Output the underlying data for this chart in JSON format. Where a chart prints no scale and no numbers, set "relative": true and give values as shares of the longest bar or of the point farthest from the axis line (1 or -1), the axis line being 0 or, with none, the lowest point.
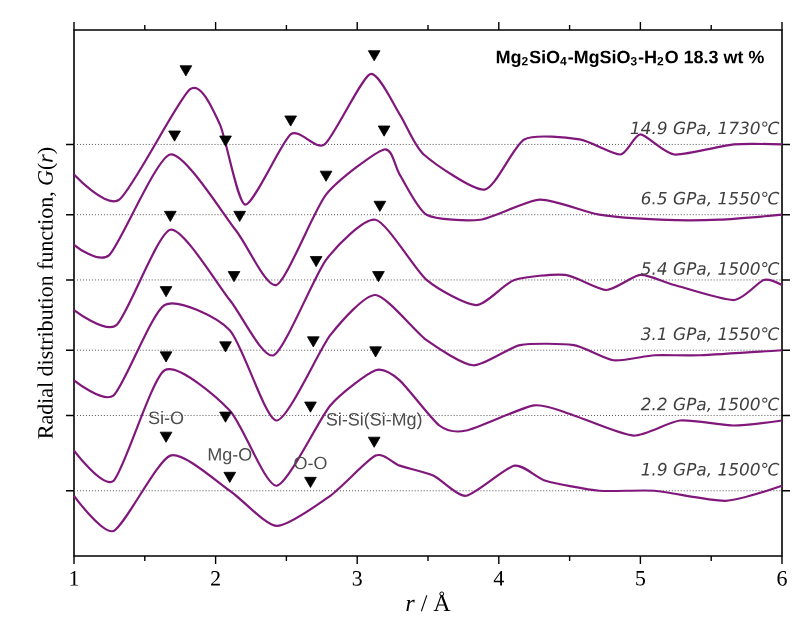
{
  "chart_data": {
    "type": "line",
    "title": "Mg$_{2}$SiO$_{4}$-MgSiO$_{3}$-H$_{2}$O 18.3 wt %",
    "xlabel": "*r* / Å",
    "ylabel": "Radial distribution function, *G*(*r*)",
    "relative": true,
    "xlim": [
      1,
      6
    ],
    "xticks": [
      1,
      2,
      3,
      4,
      5,
      6
    ],
    "line_style": "solid",
    "series": [
      {
        "name": "14.9 GPa, 1730℃",
        "color": "#80177a",
        "x": [
          1.0,
          1.32,
          1.82,
          2.03,
          2.21,
          2.53,
          2.77,
          3.09,
          3.3,
          3.47,
          3.9,
          4.18,
          4.57,
          4.86,
          5.0,
          5.24,
          5.66,
          6.0
        ],
        "values": [
          0.76,
          0.71,
          0.93,
          0.86,
          0.7,
          0.84,
          0.82,
          0.96,
          0.88,
          0.8,
          0.73,
          0.83,
          0.83,
          0.8,
          0.84,
          0.8,
          0.82,
          0.82
        ]
      },
      {
        "name": "6.5 GPa, 1550℃",
        "color": "#80177a",
        "x": [
          1.0,
          1.25,
          1.68,
          2.14,
          2.43,
          2.78,
          3.19,
          3.3,
          3.49,
          3.87,
          4.29,
          4.71,
          5.14,
          5.56,
          6.0
        ],
        "values": [
          0.62,
          0.6,
          0.8,
          0.65,
          0.54,
          0.72,
          0.81,
          0.76,
          0.68,
          0.67,
          0.71,
          0.68,
          0.67,
          0.67,
          0.68
        ]
      },
      {
        "name": "5.4 GPa, 1500℃",
        "color": "#80177a",
        "x": [
          1.0,
          1.3,
          1.68,
          2.1,
          2.41,
          2.78,
          3.13,
          3.49,
          3.84,
          4.11,
          4.47,
          4.76,
          5.0,
          5.24,
          5.66,
          5.87,
          6.0
        ],
        "values": [
          0.49,
          0.46,
          0.65,
          0.51,
          0.4,
          0.59,
          0.67,
          0.55,
          0.5,
          0.55,
          0.56,
          0.53,
          0.56,
          0.54,
          0.51,
          0.55,
          0.54
        ]
      },
      {
        "name": "3.1 GPa, 1550℃",
        "color": "#80177a",
        "x": [
          1.0,
          1.28,
          1.64,
          2.1,
          2.43,
          2.81,
          3.13,
          3.49,
          3.82,
          4.15,
          4.53,
          4.81,
          5.1,
          5.42,
          6.0
        ],
        "values": [
          0.35,
          0.32,
          0.5,
          0.45,
          0.27,
          0.44,
          0.52,
          0.43,
          0.38,
          0.42,
          0.42,
          0.39,
          0.4,
          0.4,
          0.41
        ]
      },
      {
        "name": "2.2 GPa, 1500℃",
        "color": "#80177a",
        "x": [
          1.0,
          1.28,
          1.64,
          2.1,
          2.43,
          2.81,
          3.13,
          3.3,
          3.58,
          3.77,
          4.25,
          4.53,
          4.95,
          5.28,
          5.66,
          6.0
        ],
        "values": [
          0.21,
          0.15,
          0.37,
          0.29,
          0.14,
          0.3,
          0.37,
          0.35,
          0.26,
          0.25,
          0.3,
          0.28,
          0.24,
          0.27,
          0.26,
          0.27
        ]
      },
      {
        "name": "1.9 GPa, 1500℃",
        "color": "#80177a",
        "x": [
          1.0,
          1.28,
          1.68,
          2.1,
          2.43,
          2.81,
          3.13,
          3.3,
          3.54,
          3.77,
          4.11,
          4.33,
          4.71,
          5.1,
          5.6,
          6.0
        ],
        "values": [
          0.12,
          0.05,
          0.2,
          0.13,
          0.06,
          0.12,
          0.2,
          0.18,
          0.16,
          0.12,
          0.18,
          0.15,
          0.13,
          0.13,
          0.11,
          0.14
        ]
      },
      {
        "type": "scatter",
        "marker": "triangle",
        "color": "#000000",
        "x": [
          1.79,
          3.12,
          1.71,
          2.07,
          2.53,
          3.19,
          2.78,
          1.68,
          2.17,
          3.16,
          2.71,
          1.65,
          2.13,
          3.15,
          2.07,
          2.69,
          1.65,
          3.13,
          1.65,
          2.07,
          2.67,
          3.12,
          2.1,
          2.67
        ],
        "values": [
          0.97,
          1.0,
          0.84,
          0.83,
          0.87,
          0.85,
          0.76,
          0.68,
          0.68,
          0.7,
          0.59,
          0.53,
          0.56,
          0.56,
          0.42,
          0.43,
          0.4,
          0.41,
          0.24,
          0.28,
          0.3,
          0.23,
          0.16,
          0.15
        ]
      }
    ],
    "ref_lines": [
      {
        "axis": "y",
        "value": 0.82,
        "color": "#555555",
        "line_style": "dotted"
      },
      {
        "axis": "y",
        "value": 0.68,
        "color": "#555555",
        "line_style": "dotted"
      },
      {
        "axis": "y",
        "value": 0.55,
        "color": "#555555",
        "line_style": "dotted"
      },
      {
        "axis": "y",
        "value": 0.41,
        "color": "#555555",
        "line_style": "dotted"
      },
      {
        "axis": "y",
        "value": 0.28,
        "color": "#555555",
        "line_style": "dotted"
      },
      {
        "axis": "y",
        "value": 0.13,
        "color": "#555555",
        "line_style": "dotted"
      }
    ],
    "annotations": [
      {
        "text": "Si-O",
        "x": 1.65,
        "y": 0.24
      },
      {
        "text": "Mg-O",
        "x": 2.1,
        "y": 0.16
      },
      {
        "text": "O-O",
        "x": 2.67,
        "y": 0.15
      },
      {
        "text": "Si-Si(Si-Mg)",
        "x": 3.12,
        "y": 0.23
      }
    ]
  }
}
